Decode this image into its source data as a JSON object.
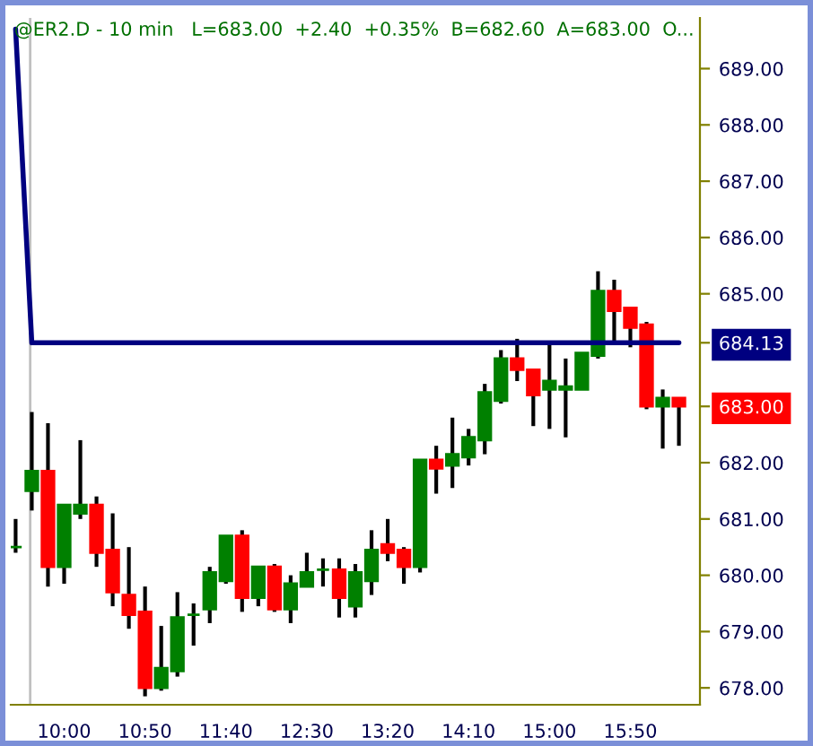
{
  "chart_data": {
    "type": "candlestick",
    "title": "@ER2.D - 10 min   L=683.00  +2.40  +0.35%  B=682.60  A=683.00  O...",
    "x": [
      9.5,
      9.6667,
      9.8333,
      10.0,
      10.1667,
      10.3333,
      10.5,
      10.6667,
      10.8333,
      11.0,
      11.1667,
      11.3333,
      11.5,
      11.6667,
      11.8333,
      12.0,
      12.1667,
      12.3333,
      12.5,
      12.6667,
      12.8333,
      13.0,
      13.1667,
      13.3333,
      13.5,
      13.6667,
      13.8333,
      14.0,
      14.1667,
      14.3333,
      14.5,
      14.6667,
      14.8333,
      15.0,
      15.1667,
      15.3333,
      15.5,
      15.6667,
      15.8333,
      16.0,
      16.1667,
      16.3333
    ],
    "ohlc": [
      [
        680.5,
        681.0,
        680.4,
        680.5
      ],
      [
        681.5,
        682.9,
        681.15,
        681.85
      ],
      [
        681.85,
        682.7,
        679.8,
        680.15
      ],
      [
        680.15,
        681.25,
        679.85,
        681.25
      ],
      [
        681.1,
        682.4,
        681.0,
        681.25
      ],
      [
        681.25,
        681.4,
        680.15,
        680.4
      ],
      [
        680.45,
        681.1,
        679.45,
        679.7
      ],
      [
        679.65,
        680.5,
        679.05,
        679.3
      ],
      [
        679.35,
        679.8,
        677.85,
        678.0
      ],
      [
        678.0,
        679.1,
        677.95,
        678.35
      ],
      [
        678.3,
        679.7,
        678.2,
        679.25
      ],
      [
        679.3,
        679.5,
        678.75,
        679.3
      ],
      [
        679.4,
        680.15,
        679.15,
        680.05
      ],
      [
        679.9,
        680.7,
        679.85,
        680.7
      ],
      [
        680.7,
        680.8,
        679.35,
        679.6
      ],
      [
        679.6,
        680.15,
        679.45,
        680.15
      ],
      [
        680.15,
        680.2,
        679.35,
        679.4
      ],
      [
        679.4,
        680.0,
        679.15,
        679.85
      ],
      [
        679.8,
        680.4,
        679.8,
        680.05
      ],
      [
        680.1,
        680.3,
        679.8,
        680.1
      ],
      [
        680.1,
        680.3,
        679.25,
        679.6
      ],
      [
        679.45,
        680.2,
        679.25,
        680.05
      ],
      [
        679.9,
        680.8,
        679.65,
        680.45
      ],
      [
        680.55,
        681.0,
        680.25,
        680.4
      ],
      [
        680.45,
        680.5,
        679.85,
        680.15
      ],
      [
        680.15,
        682.05,
        680.05,
        682.05
      ],
      [
        682.05,
        682.3,
        681.45,
        681.9
      ],
      [
        681.95,
        682.8,
        681.55,
        682.15
      ],
      [
        682.1,
        682.6,
        681.95,
        682.45
      ],
      [
        682.4,
        683.4,
        682.15,
        683.25
      ],
      [
        683.1,
        684.0,
        683.05,
        683.85
      ],
      [
        683.85,
        684.2,
        683.45,
        683.65
      ],
      [
        683.65,
        683.65,
        682.65,
        683.2
      ],
      [
        683.3,
        684.1,
        682.6,
        683.45
      ],
      [
        683.3,
        683.85,
        682.45,
        683.35
      ],
      [
        683.3,
        683.95,
        683.3,
        683.95
      ],
      [
        683.9,
        685.4,
        683.85,
        685.05
      ],
      [
        685.05,
        685.25,
        684.15,
        684.7
      ],
      [
        684.75,
        684.75,
        684.05,
        684.4
      ],
      [
        684.45,
        684.5,
        682.95,
        683.0
      ],
      [
        683.0,
        683.3,
        682.25,
        683.15
      ],
      [
        683.15,
        683.15,
        682.3,
        683.0
      ]
    ],
    "colors": [
      "#008000",
      "#008000",
      "#ff0000",
      "#008000",
      "#008000",
      "#ff0000",
      "#ff0000",
      "#ff0000",
      "#ff0000",
      "#008000",
      "#008000",
      "#008000",
      "#008000",
      "#008000",
      "#ff0000",
      "#008000",
      "#ff0000",
      "#008000",
      "#008000",
      "#008000",
      "#ff0000",
      "#008000",
      "#008000",
      "#ff0000",
      "#ff0000",
      "#008000",
      "#ff0000",
      "#008000",
      "#008000",
      "#008000",
      "#008000",
      "#ff0000",
      "#ff0000",
      "#008000",
      "#008000",
      "#008000",
      "#008000",
      "#ff0000",
      "#ff0000",
      "#ff0000",
      "#008000",
      "#ff0000"
    ],
    "series": [
      {
        "type": "line",
        "color": "#000080",
        "values": [
          689.7,
          684.13,
          684.13,
          684.13,
          684.13,
          684.13,
          684.13,
          684.13,
          684.13,
          684.13,
          684.13,
          684.13,
          684.13,
          684.13,
          684.13,
          684.13,
          684.13,
          684.13,
          684.13,
          684.13,
          684.13,
          684.13,
          684.13,
          684.13,
          684.13,
          684.13,
          684.13,
          684.13,
          684.13,
          684.13,
          684.13,
          684.13,
          684.13,
          684.13,
          684.13,
          684.13,
          684.13,
          684.13,
          684.13,
          684.13,
          684.13,
          684.13
        ]
      }
    ],
    "ref_lines": [
      {
        "axis": "x",
        "value": 9.65,
        "color": "#c0c0c0"
      }
    ],
    "xlim": [
      9.45,
      16.55
    ],
    "xticks": [
      {
        "value": 10.0,
        "label": "10:00"
      },
      {
        "value": 10.8333,
        "label": "10:50"
      },
      {
        "value": 11.6667,
        "label": "11:40"
      },
      {
        "value": 12.5,
        "label": "12:30"
      },
      {
        "value": 13.3333,
        "label": "13:20"
      },
      {
        "value": 14.1667,
        "label": "14:10"
      },
      {
        "value": 15.0,
        "label": "15:00"
      },
      {
        "value": 15.8333,
        "label": "15:50"
      }
    ],
    "ylim": [
      677.7,
      689.9
    ],
    "yticks": [
      {
        "value": 678,
        "label": "678.00"
      },
      {
        "value": 679,
        "label": "679.00"
      },
      {
        "value": 680,
        "label": "680.00"
      },
      {
        "value": 681,
        "label": "681.00"
      },
      {
        "value": 682,
        "label": "682.00"
      },
      {
        "value": 683,
        "label": "683.00"
      },
      {
        "value": 684.13,
        "label": "684.13"
      },
      {
        "value": 685,
        "label": "685.00"
      },
      {
        "value": 686,
        "label": "686.00"
      },
      {
        "value": 687,
        "label": "687.00"
      },
      {
        "value": 688,
        "label": "688.00"
      },
      {
        "value": 689,
        "label": "689.00"
      }
    ],
    "grid": false,
    "legend": false
  }
}
